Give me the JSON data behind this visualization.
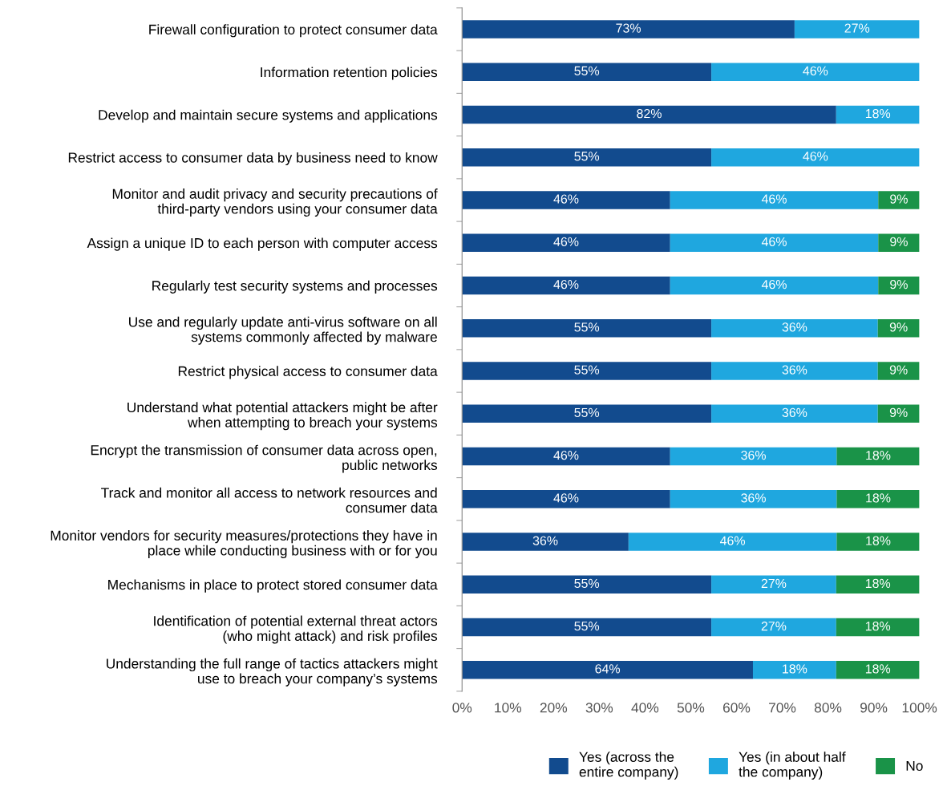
{
  "chart_data": {
    "type": "bar",
    "orientation": "horizontal",
    "stacked": true,
    "categories": [
      "Firewall configuration to protect consumer data",
      "Information retention policies",
      "Develop and maintain secure systems and applications",
      "Restrict access to consumer data by business need to know",
      "Monitor and audit privacy and security precautions of\nthird-party vendors using your consumer data",
      "Assign a unique ID to each person with computer access",
      "Regularly test security systems and processes",
      "Use and regularly update anti-virus software on all\nsystems commonly affected by malware",
      "Restrict physical access to consumer data",
      "Understand what potential attackers might be after\nwhen attempting to breach your systems",
      "Encrypt the transmission of consumer data across open,\npublic networks",
      "Track and monitor all access to network resources and\nconsumer data",
      "Monitor vendors for security measures/protections they have in\nplace while conducting business with or for you",
      "Mechanisms in place to protect stored consumer data",
      "Identification of potential external threat actors\n(who might attack) and risk profiles",
      "Understanding the full range of tactics attackers might\nuse to breach your company’s systems"
    ],
    "series": [
      {
        "name": "Yes (across the\nentire company)",
        "color": "#124b8e",
        "values": [
          72.7,
          54.5,
          81.8,
          54.5,
          45.5,
          45.5,
          45.5,
          54.5,
          54.5,
          54.5,
          45.5,
          45.5,
          36.4,
          54.5,
          54.5,
          63.6
        ],
        "value_labels": [
          "73%",
          "55%",
          "82%",
          "55%",
          "46%",
          "46%",
          "46%",
          "55%",
          "55%",
          "55%",
          "46%",
          "46%",
          "36%",
          "55%",
          "55%",
          "64%"
        ]
      },
      {
        "name": "Yes (in about half\nthe company)",
        "color": "#1fa7df",
        "values": [
          27.3,
          45.5,
          18.2,
          45.5,
          45.5,
          45.5,
          45.5,
          36.4,
          36.4,
          36.4,
          36.4,
          36.4,
          45.5,
          27.3,
          27.3,
          18.2
        ],
        "value_labels": [
          "27%",
          "46%",
          "18%",
          "46%",
          "46%",
          "46%",
          "46%",
          "36%",
          "36%",
          "36%",
          "36%",
          "36%",
          "46%",
          "27%",
          "27%",
          "18%"
        ]
      },
      {
        "name": "No",
        "color": "#1a9348",
        "values": [
          null,
          null,
          null,
          null,
          9.0,
          9.0,
          9.0,
          9.1,
          9.1,
          9.1,
          18.1,
          18.1,
          18.1,
          18.2,
          18.2,
          18.2
        ],
        "value_labels": [
          null,
          null,
          null,
          null,
          "9%",
          "9%",
          "9%",
          "9%",
          "9%",
          "9%",
          "18%",
          "18%",
          "18%",
          "18%",
          "18%",
          "18%"
        ]
      }
    ],
    "xlim": [
      0,
      100
    ],
    "xticks": [
      {
        "value": 0,
        "label": "0%"
      },
      {
        "value": 10,
        "label": "10%"
      },
      {
        "value": 20,
        "label": "20%"
      },
      {
        "value": 30,
        "label": "30%"
      },
      {
        "value": 40,
        "label": "40%"
      },
      {
        "value": 50,
        "label": "50%"
      },
      {
        "value": 60,
        "label": "60%"
      },
      {
        "value": 70,
        "label": "70%"
      },
      {
        "value": 80,
        "label": "80%"
      },
      {
        "value": 90,
        "label": "90%"
      },
      {
        "value": 100,
        "label": "100%"
      }
    ],
    "legend": "bottom",
    "grid": false
  }
}
